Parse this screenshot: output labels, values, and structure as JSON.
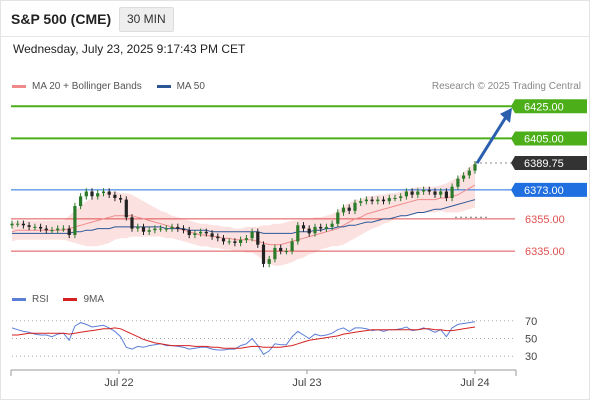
{
  "header": {
    "title": "S&P 500 (CME)",
    "timeframe": "30 MIN"
  },
  "date_text": "Wednesday, July 23, 2025 9:17:43 PM CET",
  "legend": {
    "items": [
      {
        "label": "MA 20 + Bollinger Bands",
        "color": "#f08a8a"
      },
      {
        "label": "MA 50",
        "color": "#2b5797"
      }
    ],
    "credit": "Research © 2025 Trading Central"
  },
  "rsi_legend": {
    "items": [
      {
        "label": "RSI",
        "color": "#5b7fd6"
      },
      {
        "label": "9MA",
        "color": "#d62020"
      }
    ]
  },
  "colors": {
    "resistance": "#4caf1a",
    "pivot": "#1f6fe0",
    "support": "#e05050",
    "last": "#333333",
    "arrow": "#2b5fae",
    "candle": "#2a7a2a",
    "band": "#fbd9d9"
  },
  "chart_data": {
    "type": "candlestick",
    "ylim": [
      6322,
      6432
    ],
    "x_ticks": [
      "Jul 22",
      "Jul 23",
      "Jul 24"
    ],
    "levels": [
      {
        "value": 6425.0,
        "label": "6425.00",
        "kind": "resistance"
      },
      {
        "value": 6405.0,
        "label": "6405.00",
        "kind": "resistance"
      },
      {
        "value": 6389.75,
        "label": "6389.75",
        "kind": "last"
      },
      {
        "value": 6373.0,
        "label": "6373.00",
        "kind": "pivot"
      },
      {
        "value": 6355.0,
        "label": "6355.00",
        "kind": "support"
      },
      {
        "value": 6335.0,
        "label": "6335.00",
        "kind": "support"
      }
    ],
    "close": [
      6352,
      6352,
      6351,
      6350,
      6350,
      6349,
      6348,
      6348,
      6349,
      6349,
      6345,
      6363,
      6369,
      6372,
      6369,
      6371,
      6372,
      6370,
      6368,
      6367,
      6356,
      6349,
      6350,
      6347,
      6348,
      6349,
      6349,
      6349,
      6350,
      6349,
      6348,
      6345,
      6346,
      6347,
      6346,
      6344,
      6343,
      6341,
      6341,
      6340,
      6342,
      6343,
      6347,
      6339,
      6327,
      6330,
      6337,
      6335,
      6335,
      6341,
      6351,
      6349,
      6346,
      6350,
      6349,
      6350,
      6352,
      6359,
      6362,
      6360,
      6365,
      6366,
      6367,
      6366,
      6367,
      6366,
      6368,
      6368,
      6369,
      6372,
      6370,
      6372,
      6373,
      6372,
      6370,
      6372,
      6368,
      6375,
      6380,
      6382,
      6385,
      6389
    ],
    "ma20": [
      6347,
      6348,
      6348,
      6348,
      6348,
      6348,
      6348,
      6348,
      6348,
      6348,
      6349,
      6350,
      6351,
      6352,
      6353,
      6354,
      6355,
      6356,
      6357,
      6357,
      6357,
      6357,
      6356,
      6355,
      6354,
      6353,
      6352,
      6351,
      6350,
      6349,
      6348,
      6347,
      6346,
      6345,
      6345,
      6344,
      6344,
      6343,
      6343,
      6342,
      6342,
      6342,
      6342,
      6341,
      6340,
      6339,
      6339,
      6339,
      6340,
      6341,
      6342,
      6343,
      6344,
      6345,
      6346,
      6347,
      6348,
      6349,
      6351,
      6353,
      6355,
      6356,
      6358,
      6359,
      6360,
      6361,
      6362,
      6363,
      6364,
      6365,
      6366,
      6367,
      6367,
      6367,
      6367,
      6368,
      6368,
      6369,
      6370,
      6372,
      6374,
      6376
    ],
    "ma50": [
      6346,
      6346,
      6346,
      6346,
      6346,
      6346,
      6346,
      6346,
      6346,
      6346,
      6346,
      6347,
      6347,
      6348,
      6348,
      6349,
      6349,
      6349,
      6350,
      6350,
      6350,
      6350,
      6350,
      6350,
      6350,
      6350,
      6350,
      6349,
      6349,
      6349,
      6349,
      6348,
      6348,
      6348,
      6348,
      6347,
      6347,
      6347,
      6347,
      6347,
      6347,
      6347,
      6347,
      6347,
      6346,
      6346,
      6346,
      6346,
      6346,
      6346,
      6347,
      6347,
      6347,
      6348,
      6348,
      6349,
      6349,
      6350,
      6350,
      6351,
      6351,
      6352,
      6353,
      6353,
      6354,
      6355,
      6355,
      6356,
      6357,
      6357,
      6358,
      6359,
      6359,
      6360,
      6361,
      6361,
      6362,
      6363,
      6364,
      6365,
      6366,
      6367
    ],
    "bb_width": [
      6,
      6,
      6,
      6,
      6,
      6,
      6,
      6,
      6,
      6,
      8,
      10,
      12,
      14,
      15,
      16,
      16,
      16,
      15,
      14,
      14,
      13,
      12,
      11,
      10,
      9,
      8,
      8,
      7,
      7,
      7,
      7,
      7,
      7,
      7,
      7,
      7,
      7,
      7,
      7,
      7,
      8,
      8,
      9,
      11,
      12,
      13,
      13,
      13,
      13,
      12,
      12,
      11,
      11,
      10,
      10,
      10,
      11,
      12,
      12,
      12,
      11,
      11,
      10,
      10,
      9,
      9,
      8,
      8,
      8,
      8,
      8,
      8,
      8,
      8,
      8,
      9,
      10,
      11,
      12,
      13,
      14
    ],
    "rsi": [
      62,
      60,
      58,
      57,
      55,
      54,
      54,
      52,
      55,
      56,
      48,
      64,
      68,
      66,
      63,
      64,
      65,
      62,
      58,
      52,
      40,
      38,
      41,
      40,
      42,
      43,
      44,
      42,
      42,
      41,
      40,
      38,
      39,
      40,
      40,
      38,
      37,
      37,
      38,
      38,
      42,
      44,
      50,
      42,
      32,
      36,
      44,
      43,
      43,
      52,
      58,
      54,
      50,
      55,
      53,
      54,
      56,
      60,
      62,
      58,
      62,
      62,
      61,
      59,
      60,
      58,
      60,
      60,
      61,
      63,
      59,
      60,
      62,
      60,
      57,
      60,
      52,
      62,
      66,
      67,
      68,
      69
    ],
    "rsi_ma9": [
      54,
      54,
      55,
      56,
      56,
      56,
      56,
      56,
      56,
      56,
      55,
      56,
      57,
      58,
      59,
      60,
      61,
      61,
      62,
      61,
      58,
      55,
      52,
      49,
      47,
      45,
      44,
      43,
      42,
      42,
      42,
      42,
      41,
      41,
      41,
      40,
      40,
      39,
      39,
      39,
      39,
      40,
      41,
      41,
      40,
      40,
      40,
      40,
      41,
      42,
      44,
      46,
      48,
      49,
      50,
      51,
      52,
      53,
      55,
      56,
      57,
      58,
      59,
      60,
      60,
      60,
      60,
      60,
      60,
      60,
      60,
      60,
      61,
      61,
      60,
      60,
      59,
      59,
      60,
      61,
      62,
      63
    ],
    "rsi_ylim": [
      20,
      80
    ],
    "rsi_ticks": [
      70,
      50,
      30
    ]
  }
}
